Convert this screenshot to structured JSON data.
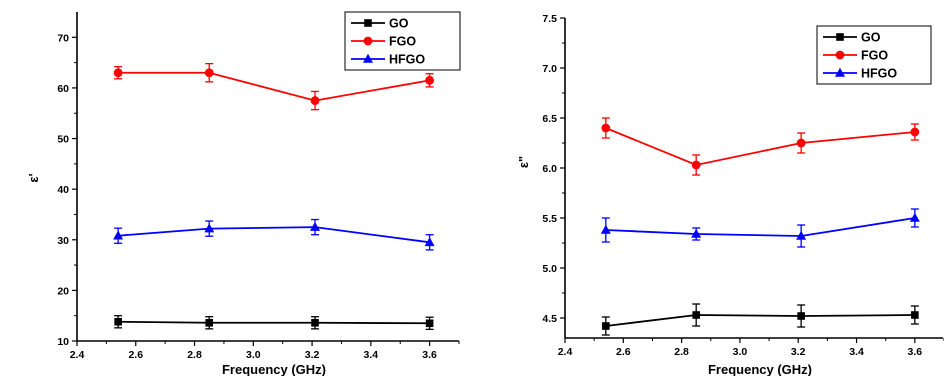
{
  "chart_data": [
    {
      "type": "line",
      "xlabel": "Frequency (GHz)",
      "ylabel": "ε'",
      "xlim": [
        2.4,
        3.7
      ],
      "ylim": [
        10,
        75
      ],
      "xticks": [
        "2.4",
        "2.6",
        "2.8",
        "3.0",
        "3.2",
        "3.4",
        "3.6"
      ],
      "yticks": [
        "10",
        "20",
        "30",
        "40",
        "50",
        "60",
        "70"
      ],
      "x": [
        2.54,
        2.85,
        3.21,
        3.6
      ],
      "legend_position": "top-right",
      "series": [
        {
          "name": "GO",
          "color": "#000000",
          "marker": "square",
          "values": [
            13.8,
            13.6,
            13.6,
            13.5
          ],
          "errors": [
            1.2,
            1.2,
            1.2,
            1.2
          ]
        },
        {
          "name": "FGO",
          "color": "#ff0000",
          "marker": "circle",
          "values": [
            63.0,
            63.0,
            57.5,
            61.5
          ],
          "errors": [
            1.2,
            1.8,
            1.8,
            1.3
          ]
        },
        {
          "name": "HFGO",
          "color": "#0000ff",
          "marker": "triangle",
          "values": [
            30.8,
            32.2,
            32.5,
            29.5
          ],
          "errors": [
            1.5,
            1.5,
            1.5,
            1.5
          ]
        }
      ]
    },
    {
      "type": "line",
      "xlabel": "Frequency (GHz)",
      "ylabel": "ε\"",
      "xlim": [
        2.4,
        3.7
      ],
      "ylim": [
        4.3,
        7.5
      ],
      "xticks": [
        "2.4",
        "2.6",
        "2.8",
        "3.0",
        "3.2",
        "3.4",
        "3.6"
      ],
      "yticks": [
        "4.5",
        "5.0",
        "5.5",
        "6.0",
        "6.5",
        "7.0",
        "7.5"
      ],
      "x": [
        2.54,
        2.85,
        3.21,
        3.6
      ],
      "legend_position": "top-right",
      "series": [
        {
          "name": "GO",
          "color": "#000000",
          "marker": "square",
          "values": [
            4.42,
            4.53,
            4.52,
            4.53
          ],
          "errors": [
            0.09,
            0.11,
            0.11,
            0.09
          ]
        },
        {
          "name": "FGO",
          "color": "#ff0000",
          "marker": "circle",
          "values": [
            6.4,
            6.03,
            6.25,
            6.36
          ],
          "errors": [
            0.1,
            0.1,
            0.1,
            0.08
          ]
        },
        {
          "name": "HFGO",
          "color": "#0000ff",
          "marker": "triangle",
          "values": [
            5.38,
            5.34,
            5.32,
            5.5
          ],
          "errors": [
            0.12,
            0.06,
            0.11,
            0.09
          ]
        }
      ]
    }
  ]
}
